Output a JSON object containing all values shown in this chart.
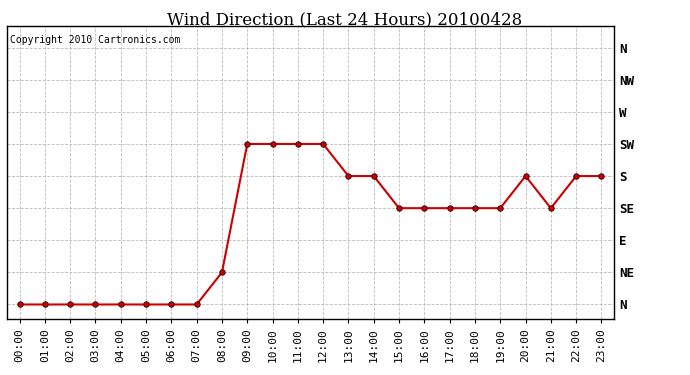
{
  "title": "Wind Direction (Last 24 Hours) 20100428",
  "copyright": "Copyright 2010 Cartronics.com",
  "x_labels": [
    "00:00",
    "01:00",
    "02:00",
    "03:00",
    "04:00",
    "05:00",
    "06:00",
    "07:00",
    "08:00",
    "09:00",
    "10:00",
    "11:00",
    "12:00",
    "13:00",
    "14:00",
    "15:00",
    "16:00",
    "17:00",
    "18:00",
    "19:00",
    "20:00",
    "21:00",
    "22:00",
    "23:00"
  ],
  "y_ticks": [
    360,
    315,
    270,
    225,
    180,
    135,
    90,
    45,
    0
  ],
  "y_labels": [
    "N",
    "NW",
    "W",
    "SW",
    "S",
    "SE",
    "E",
    "NE",
    "N"
  ],
  "data_values": [
    0,
    0,
    0,
    0,
    0,
    0,
    0,
    0,
    45,
    225,
    225,
    225,
    225,
    180,
    180,
    135,
    135,
    135,
    135,
    135,
    180,
    135,
    180,
    180
  ],
  "line_color": "#cc0000",
  "marker_size": 4,
  "grid_color": "#bbbbbb",
  "bg_color": "#ffffff",
  "fig_bg_color": "#ffffff",
  "title_fontsize": 12,
  "copyright_fontsize": 7,
  "tick_fontsize": 8,
  "ylabel_fontsize": 9
}
